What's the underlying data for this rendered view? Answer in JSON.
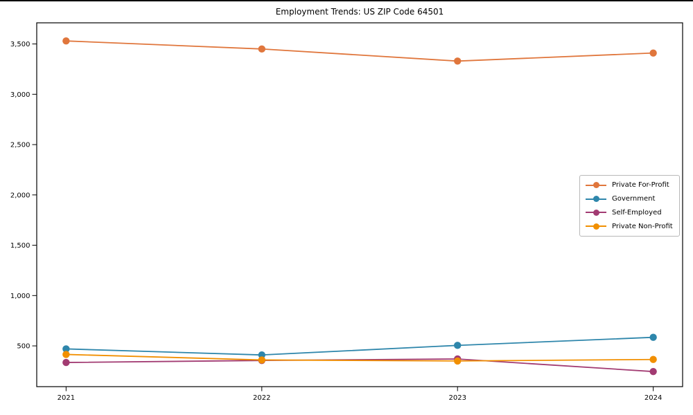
{
  "window": {
    "top_edge_color": "#000000",
    "background_color": "#ffffff"
  },
  "chart_data": {
    "type": "line",
    "title": "Employment Trends: US ZIP Code 64501",
    "xlabel": "",
    "ylabel": "",
    "x": [
      2021,
      2022,
      2023,
      2024
    ],
    "x_tick_labels": [
      "2021",
      "2022",
      "2023",
      "2024"
    ],
    "series": [
      {
        "name": "Private For-Profit",
        "color": "#E0763C",
        "values": [
          3530,
          3450,
          3330,
          3410
        ]
      },
      {
        "name": "Government",
        "color": "#2E86AB",
        "values": [
          470,
          410,
          505,
          585
        ]
      },
      {
        "name": "Self-Employed",
        "color": "#A23B72",
        "values": [
          335,
          355,
          370,
          245
        ]
      },
      {
        "name": "Private Non-Profit",
        "color": "#F18F01",
        "values": [
          415,
          360,
          350,
          365
        ]
      }
    ],
    "yticks": [
      500,
      1000,
      1500,
      2000,
      2500,
      3000,
      3500
    ],
    "ytick_labels": [
      "500",
      "1,000",
      "1,500",
      "2,000",
      "2,500",
      "3,000",
      "3,500"
    ],
    "ylim": [
      95,
      3710
    ],
    "xlim": [
      2020.85,
      2024.15
    ],
    "grid": false,
    "legend": {
      "position": "center right",
      "entries": [
        "Private For-Profit",
        "Government",
        "Self-Employed",
        "Private Non-Profit"
      ]
    },
    "axis_color": "#000000",
    "marker": "circle",
    "marker_radius": 5.2,
    "line_width": 1.8
  }
}
